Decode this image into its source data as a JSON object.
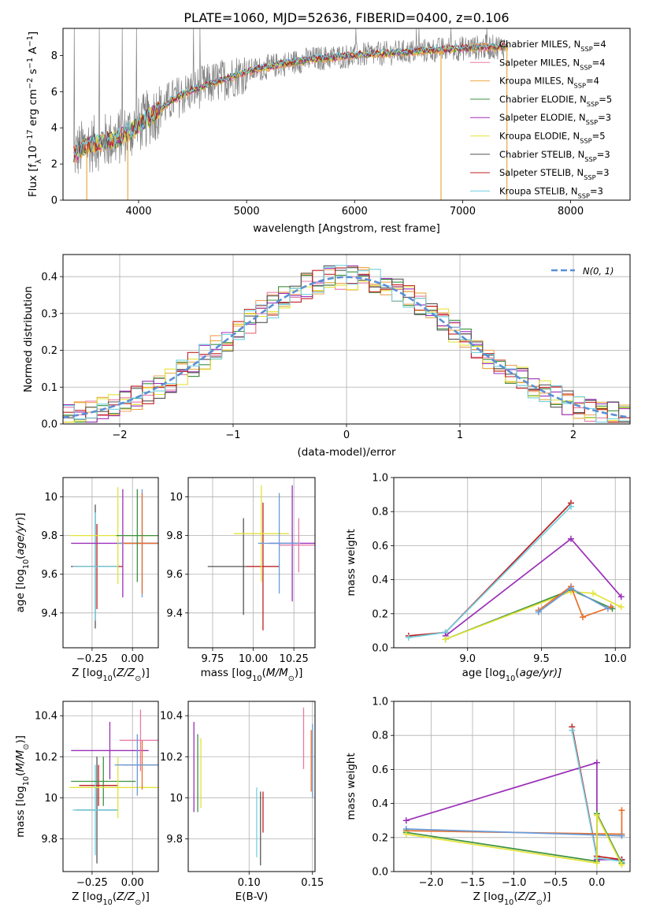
{
  "title": "PLATE=1060, MJD=52636, FIBERID=0400, z=0.106",
  "colors": {
    "chabrier_miles": "#f0a058",
    "salpeter_miles": "#e87aa8",
    "kroupa_miles": "#e8aa40",
    "chabrier_elodie": "#3d9140",
    "salpeter_elodie": "#9b30b8",
    "kroupa_elodie": "#e3e33a",
    "chabrier_stelib": "#555555",
    "salpeter_stelib": "#c02020",
    "kroupa_stelib": "#72d0e0",
    "normal": "#5b8fd6",
    "green_fit": "#bdf07a",
    "orange_fit": "#e86f2a",
    "blue_fit": "#6a9bd8",
    "grid": "#b0b0b0"
  },
  "chart_data": [
    {
      "id": "spectrum",
      "type": "line",
      "xlabel": "wavelength [Angstrom, rest frame]",
      "ylabel_parts": [
        "Flux [f",
        "λ",
        "10",
        "−17",
        " erg cm",
        "−2",
        " s",
        "−1",
        " A",
        "−1",
        "]"
      ],
      "xlim": [
        3300,
        8550
      ],
      "ylim": [
        0,
        9.5
      ],
      "xticks": [
        4000,
        5000,
        6000,
        7000,
        8000
      ],
      "yticks": [
        0,
        2,
        4,
        6,
        8
      ],
      "grid": false,
      "legend_position": "right",
      "series": [
        {
          "name_base": "Chabrier MILES, N",
          "sub": "SSP",
          "n": "=4",
          "color_key": "chabrier_miles"
        },
        {
          "name_base": "Salpeter MILES, N",
          "sub": "SSP",
          "n": "=4",
          "color_key": "salpeter_miles"
        },
        {
          "name_base": "Kroupa MILES, N",
          "sub": "SSP",
          "n": "=4",
          "color_key": "kroupa_miles"
        },
        {
          "name_base": "Chabrier ELODIE, N",
          "sub": "SSP",
          "n": "=5",
          "color_key": "chabrier_elodie"
        },
        {
          "name_base": "Salpeter ELODIE, N",
          "sub": "SSP",
          "n": "=3",
          "color_key": "salpeter_elodie"
        },
        {
          "name_base": "Kroupa ELODIE, N",
          "sub": "SSP",
          "n": "=5",
          "color_key": "kroupa_elodie"
        },
        {
          "name_base": "Chabrier STELIB, N",
          "sub": "SSP",
          "n": "=3",
          "color_key": "chabrier_stelib"
        },
        {
          "name_base": "Salpeter STELIB, N",
          "sub": "SSP",
          "n": "=3",
          "color_key": "salpeter_stelib"
        },
        {
          "name_base": "Kroupa STELIB, N",
          "sub": "SSP",
          "n": "=3",
          "color_key": "kroupa_stelib"
        }
      ],
      "continuum": [
        [
          3400,
          2.5
        ],
        [
          3500,
          3.0
        ],
        [
          3650,
          3.2
        ],
        [
          3800,
          3.4
        ],
        [
          3950,
          3.9
        ],
        [
          4100,
          4.6
        ],
        [
          4300,
          5.5
        ],
        [
          4500,
          6.1
        ],
        [
          4700,
          6.5
        ],
        [
          5000,
          7.1
        ],
        [
          5300,
          7.5
        ],
        [
          5600,
          7.8
        ],
        [
          6000,
          8.0
        ],
        [
          6500,
          8.2
        ],
        [
          7000,
          8.4
        ],
        [
          7400,
          8.5
        ]
      ],
      "drops": [
        [
          3520,
          0
        ],
        [
          3900,
          0
        ],
        [
          6800,
          0
        ],
        [
          7410,
          0
        ]
      ]
    },
    {
      "id": "histogram",
      "type": "bar",
      "xlabel": "(data-model)/error",
      "ylabel": "Normed distribution",
      "xlim": [
        -2.5,
        2.5
      ],
      "ylim": [
        0,
        0.46
      ],
      "xticks": [
        -2,
        -1,
        0,
        1,
        2
      ],
      "xtick_labels": [
        "−2",
        "−1",
        "0",
        "1",
        "2"
      ],
      "yticks": [
        0.0,
        0.1,
        0.2,
        0.3,
        0.4
      ],
      "ytick_labels": [
        "0.0",
        "0.1",
        "0.2",
        "0.3",
        "0.4"
      ],
      "grid": true,
      "legend_position": "top-right",
      "legend_label": "N(0, 1)",
      "bin_width": 0.1
    },
    {
      "id": "age_vs_Z",
      "type": "scatter",
      "xlabel_parts": [
        "Z [log",
        "10",
        "(Z/Z",
        "⊙",
        ")]"
      ],
      "ylabel_parts": [
        "age  [log",
        "10",
        "(age/yr)]"
      ],
      "xlim": [
        -0.43,
        0.16
      ],
      "ylim": [
        9.22,
        10.1
      ],
      "xticks": [
        -0.25,
        0.0
      ],
      "xtick_labels": [
        "−0.25",
        "0.00"
      ],
      "yticks": [
        9.4,
        9.6,
        9.8,
        10.0
      ],
      "grid": true,
      "points": [
        {
          "x": -0.22,
          "y": 9.64,
          "xerr": 0.16,
          "yerr": 0.22,
          "c": "salpeter_stelib"
        },
        {
          "x": -0.23,
          "y": 9.64,
          "xerr": 0.15,
          "yerr": 0.32,
          "c": "chabrier_stelib"
        },
        {
          "x": -0.23,
          "y": 9.64,
          "xerr": 0.14,
          "yerr": 0.28,
          "c": "kroupa_stelib"
        },
        {
          "x": -0.06,
          "y": 9.76,
          "xerr": 0.32,
          "yerr": 0.28,
          "c": "salpeter_elodie"
        },
        {
          "x": -0.09,
          "y": 9.8,
          "xerr": 0.3,
          "yerr": 0.25,
          "c": "kroupa_elodie"
        },
        {
          "x": 0.06,
          "y": 9.76,
          "xerr": 0.15,
          "yerr": 0.28,
          "c": "blue_fit"
        },
        {
          "x": 0.06,
          "y": 9.76,
          "xerr": 0.12,
          "yerr": 0.26,
          "c": "orange_fit"
        },
        {
          "x": 0.03,
          "y": 9.8,
          "xerr": 0.13,
          "yerr": 0.24,
          "c": "chabrier_elodie"
        }
      ]
    },
    {
      "id": "age_vs_mass",
      "type": "scatter",
      "xlabel_parts": [
        "mass [log",
        "10",
        "(M/M",
        "⊙",
        ")]"
      ],
      "ylabel": "",
      "xlim": [
        9.6,
        10.38
      ],
      "ylim": [
        9.22,
        10.1
      ],
      "xticks": [
        9.75,
        10.0,
        10.25
      ],
      "xtick_labels": [
        "9.75",
        "10.00",
        "10.25"
      ],
      "yticks": [
        9.4,
        9.6,
        9.8,
        10.0
      ],
      "grid": true,
      "points": [
        {
          "x": 9.94,
          "y": 9.64,
          "xerr": 0.22,
          "yerr": 0.25,
          "c": "chabrier_stelib"
        },
        {
          "x": 10.06,
          "y": 9.64,
          "xerr": 0.1,
          "yerr": 0.33,
          "c": "salpeter_stelib"
        },
        {
          "x": 10.24,
          "y": 9.76,
          "xerr": 0.14,
          "yerr": 0.3,
          "c": "salpeter_elodie"
        },
        {
          "x": 10.05,
          "y": 9.81,
          "xerr": 0.17,
          "yerr": 0.25,
          "c": "kroupa_elodie"
        },
        {
          "x": 10.16,
          "y": 9.76,
          "xerr": 0.13,
          "yerr": 0.26,
          "c": "blue_fit"
        },
        {
          "x": 10.28,
          "y": 9.75,
          "xerr": 0.12,
          "yerr": 0.14,
          "c": "salpeter_miles"
        }
      ]
    },
    {
      "id": "weight_vs_age",
      "type": "line",
      "xlabel_parts": [
        "age  [log",
        "10",
        "(age/yr)]"
      ],
      "ylabel": "mass weight",
      "xlim": [
        8.5,
        10.1
      ],
      "ylim": [
        0,
        1.0
      ],
      "xticks": [
        9.0,
        9.5,
        10.0
      ],
      "xtick_labels": [
        "9.0",
        "9.5",
        "10.0"
      ],
      "yticks": [
        0.0,
        0.2,
        0.4,
        0.6,
        0.8,
        1.0
      ],
      "ytick_labels": [
        "0.0",
        "0.2",
        "0.4",
        "0.6",
        "0.8",
        "1.0"
      ],
      "grid": true,
      "series": [
        {
          "c": "salpeter_stelib",
          "x": [
            8.6,
            8.85,
            9.7
          ],
          "y": [
            0.07,
            0.09,
            0.85
          ]
        },
        {
          "c": "kroupa_stelib",
          "x": [
            8.6,
            8.85,
            9.7
          ],
          "y": [
            0.06,
            0.09,
            0.83
          ]
        },
        {
          "c": "salpeter_elodie",
          "x": [
            8.85,
            9.7,
            10.04
          ],
          "y": [
            0.07,
            0.64,
            0.3
          ]
        },
        {
          "c": "chabrier_elodie",
          "x": [
            8.85,
            9.7,
            9.98
          ],
          "y": [
            0.05,
            0.34,
            0.23
          ]
        },
        {
          "c": "kroupa_elodie",
          "x": [
            8.85,
            9.7,
            9.85,
            10.04
          ],
          "y": [
            0.05,
            0.33,
            0.32,
            0.24
          ]
        },
        {
          "c": "orange_fit",
          "x": [
            9.48,
            9.7,
            9.78,
            9.97
          ],
          "y": [
            0.22,
            0.36,
            0.18,
            0.24
          ]
        },
        {
          "c": "blue_fit",
          "x": [
            9.48,
            9.7,
            9.95
          ],
          "y": [
            0.21,
            0.35,
            0.23
          ]
        }
      ]
    },
    {
      "id": "mass_vs_Z",
      "type": "scatter",
      "xlabel_parts": [
        "Z [log",
        "10",
        "(Z/Z",
        "⊙",
        ")]"
      ],
      "ylabel_parts": [
        "mass [log",
        "10",
        "(M/M",
        "⊙",
        ")]"
      ],
      "xlim": [
        -0.43,
        0.16
      ],
      "ylim": [
        9.64,
        10.47
      ],
      "xticks": [
        -0.25,
        0.0
      ],
      "xtick_labels": [
        "−0.25",
        "0.00"
      ],
      "yticks": [
        9.8,
        10.0,
        10.2,
        10.4
      ],
      "grid": true,
      "points": [
        {
          "x": -0.22,
          "y": 9.94,
          "xerr": 0.13,
          "yerr": 0.26,
          "c": "chabrier_stelib"
        },
        {
          "x": -0.21,
          "y": 10.06,
          "xerr": 0.12,
          "yerr": 0.1,
          "c": "salpeter_stelib"
        },
        {
          "x": -0.23,
          "y": 9.94,
          "xerr": 0.14,
          "yerr": 0.22,
          "c": "kroupa_stelib"
        },
        {
          "x": -0.14,
          "y": 10.23,
          "xerr": 0.24,
          "yerr": 0.14,
          "c": "salpeter_elodie"
        },
        {
          "x": -0.18,
          "y": 10.08,
          "xerr": 0.2,
          "yerr": 0.12,
          "c": "chabrier_elodie"
        },
        {
          "x": -0.09,
          "y": 10.05,
          "xerr": 0.3,
          "yerr": 0.15,
          "c": "kroupa_elodie"
        },
        {
          "x": 0.06,
          "y": 10.16,
          "xerr": 0.12,
          "yerr": 0.12,
          "c": "orange_fit"
        },
        {
          "x": 0.05,
          "y": 10.28,
          "xerr": 0.13,
          "yerr": 0.15,
          "c": "salpeter_miles"
        },
        {
          "x": 0.03,
          "y": 10.16,
          "xerr": 0.14,
          "yerr": 0.15,
          "c": "blue_fit"
        }
      ]
    },
    {
      "id": "mass_vs_ebv",
      "type": "scatter",
      "xlabel": "E(B-V)",
      "ylabel": "",
      "xlim": [
        0.052,
        0.152
      ],
      "ylim": [
        9.64,
        10.47
      ],
      "xticks": [
        0.1,
        0.15
      ],
      "xtick_labels": [
        "0.10",
        "0.15"
      ],
      "yticks": [
        9.8,
        10.0,
        10.2,
        10.4
      ],
      "grid": true,
      "points": [
        {
          "x": 0.0565,
          "y": 10.15,
          "xerr": 0,
          "yerr": 0.22,
          "c": "salpeter_elodie"
        },
        {
          "x": 0.0595,
          "y": 10.12,
          "xerr": 0,
          "yerr": 0.19,
          "c": "chabrier_elodie"
        },
        {
          "x": 0.062,
          "y": 10.12,
          "xerr": 0,
          "yerr": 0.17,
          "c": "kroupa_elodie"
        },
        {
          "x": 0.106,
          "y": 9.88,
          "xerr": 0,
          "yerr": 0.17,
          "c": "kroupa_stelib"
        },
        {
          "x": 0.109,
          "y": 9.85,
          "xerr": 0,
          "yerr": 0.18,
          "c": "chabrier_stelib"
        },
        {
          "x": 0.111,
          "y": 9.93,
          "xerr": 0,
          "yerr": 0.1,
          "c": "salpeter_stelib"
        },
        {
          "x": 0.143,
          "y": 10.29,
          "xerr": 0,
          "yerr": 0.15,
          "c": "salpeter_miles"
        },
        {
          "x": 0.149,
          "y": 10.18,
          "xerr": 0,
          "yerr": 0.15,
          "c": "orange_fit"
        },
        {
          "x": 0.15,
          "y": 10.18,
          "xerr": 0,
          "yerr": 0.18,
          "c": "blue_fit"
        }
      ]
    },
    {
      "id": "weight_vs_Z",
      "type": "line",
      "xlabel_parts": [
        "Z [log",
        "10",
        "(Z/Z",
        "⊙",
        ")]"
      ],
      "ylabel": "mass weight",
      "xlim": [
        -2.45,
        0.4
      ],
      "ylim": [
        0,
        1.0
      ],
      "xticks": [
        -2.0,
        -1.5,
        -1.0,
        -0.5,
        0.0
      ],
      "xtick_labels": [
        "−2.0",
        "−1.5",
        "−1.0",
        "−0.5",
        "0.0"
      ],
      "yticks": [
        0.0,
        0.2,
        0.4,
        0.6,
        0.8,
        1.0
      ],
      "ytick_labels": [
        "0.0",
        "0.2",
        "0.4",
        "0.6",
        "0.8",
        "1.0"
      ],
      "grid": true,
      "series": [
        {
          "c": "salpeter_elodie",
          "x": [
            -2.3,
            0.0,
            0.0,
            0.3,
            0.3
          ],
          "y": [
            0.3,
            0.64,
            0.07,
            0.07,
            0.07
          ]
        },
        {
          "c": "salpeter_stelib",
          "x": [
            -0.3,
            0.0,
            0.3
          ],
          "y": [
            0.85,
            0.09,
            0.07
          ]
        },
        {
          "c": "kroupa_stelib",
          "x": [
            -0.3,
            0.0,
            0.3
          ],
          "y": [
            0.83,
            0.08,
            0.06
          ]
        },
        {
          "c": "orange_fit",
          "x": [
            -2.3,
            0.3,
            0.3
          ],
          "y": [
            0.24,
            0.22,
            0.36
          ]
        },
        {
          "c": "blue_fit",
          "x": [
            -2.3,
            0.3
          ],
          "y": [
            0.25,
            0.21
          ]
        },
        {
          "c": "chabrier_elodie",
          "x": [
            -2.3,
            0.0,
            0.0,
            0.3
          ],
          "y": [
            0.23,
            0.06,
            0.34,
            0.05
          ]
        },
        {
          "c": "kroupa_elodie",
          "x": [
            -2.3,
            0.0,
            0.0,
            0.3
          ],
          "y": [
            0.22,
            0.05,
            0.33,
            0.04
          ]
        }
      ]
    }
  ]
}
